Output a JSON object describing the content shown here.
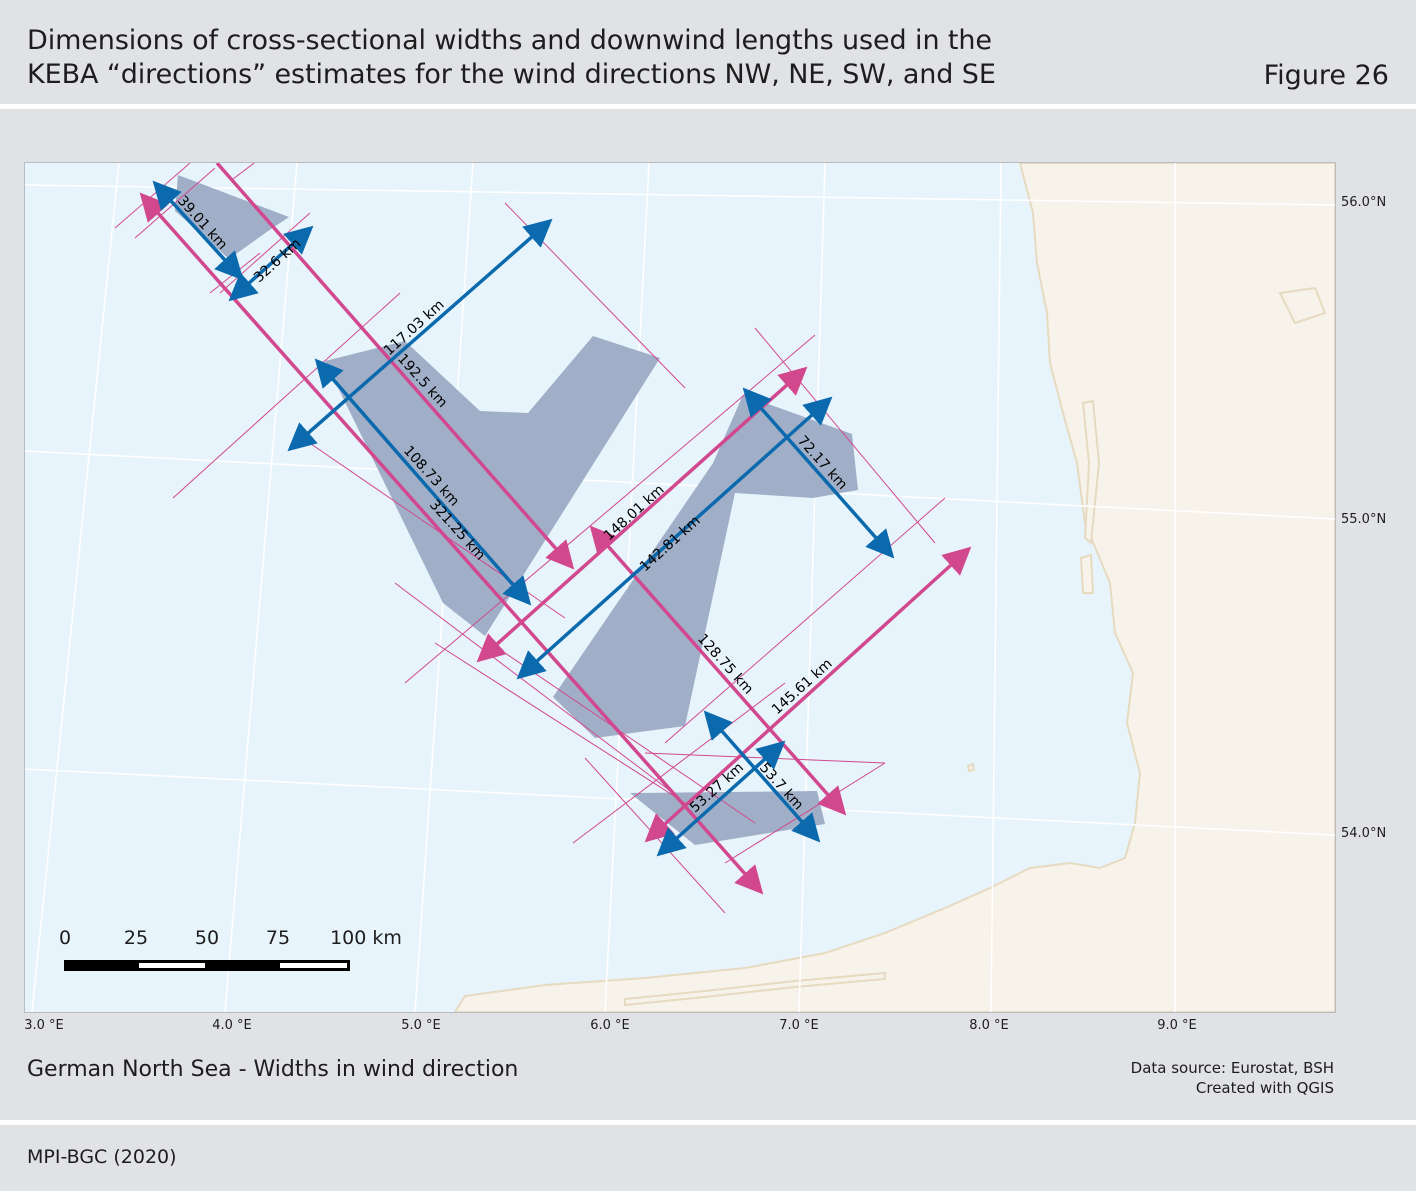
{
  "header": {
    "title_line1": "Dimensions of cross-sectional widths and downwind lengths used in the",
    "title_line2": "KEBA “directions” estimates for the wind directions NW, NE, SW, and SE",
    "figure": "Figure 26"
  },
  "map": {
    "lat_labels": [
      "56.0°N",
      "55.0°N",
      "54.0°N"
    ],
    "lon_labels": [
      "3.0 °E",
      "4.0 °E",
      "5.0 °E",
      "6.0 °E",
      "7.0 °E",
      "8.0 °E",
      "9.0 °E"
    ],
    "scale_bar": [
      "0",
      "25",
      "50",
      "75",
      "100 km"
    ],
    "colors": {
      "sea": "#e8f4fc",
      "land": "#f7f3ea",
      "coast": "#e6dac0",
      "zone": "#a0afc7",
      "width_arrow": "#0a6aad",
      "length_arrow": "#d1488f"
    },
    "measurements": [
      "39.01 km",
      "32.6 km",
      "117.03 km",
      "192.5 km",
      "108.73 km",
      "321.25 km",
      "148.01 km",
      "142.81 km",
      "72.17 km",
      "128.75 km",
      "145.61 km",
      "53.27 km",
      "53.7 km"
    ]
  },
  "subtitle": "German North Sea - Widths in wind direction",
  "source_line1": "Data source: Eurostat, BSH",
  "source_line2": "Created with QGIS",
  "footer": "MPI-BGC (2020)"
}
